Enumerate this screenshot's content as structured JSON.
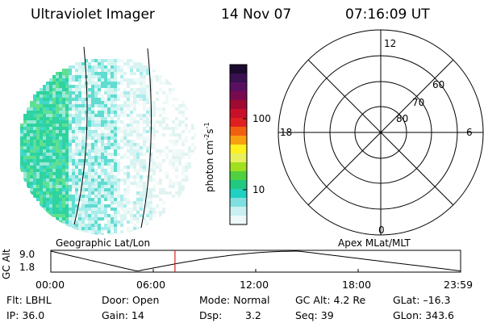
{
  "header": {
    "instrument": "Ultraviolet Imager",
    "date": "14 Nov 07",
    "time": "07:16:09 UT"
  },
  "colorbar": {
    "label_main": "photon cm",
    "label_exp1": "-2",
    "label_mid": "s",
    "label_exp2": "-1",
    "ticks": [
      "100",
      "10"
    ],
    "colors": [
      "#1a0a2e",
      "#3a1050",
      "#5a1060",
      "#7a0a50",
      "#a00a30",
      "#c8102a",
      "#e02020",
      "#f06010",
      "#f8a010",
      "#fff020",
      "#e8f060",
      "#a0e020",
      "#50d040",
      "#20c880",
      "#20d0c0",
      "#80e0e0",
      "#c8f0f0",
      "#eef8f8"
    ]
  },
  "geo_label": "Geographic Lat/Lon",
  "apex_label": "Apex MLat/MLT",
  "polar": {
    "mlt_labels": {
      "top": "12",
      "left": "18",
      "right": "6",
      "bottom": "0"
    },
    "lat_labels": [
      "60",
      "70",
      "80"
    ]
  },
  "timeline": {
    "ylabel": "GC Alt",
    "y_ticks": [
      "9.0",
      "1.8"
    ],
    "x_ticks": [
      "00:00",
      "06:00",
      "12:00",
      "18:00",
      "23:59"
    ],
    "marker_hour": 7.27
  },
  "info": {
    "row1": {
      "flt": "Flt: LBHL",
      "door": "Door: Open",
      "mode": "Mode: Normal",
      "gcalt": "GC Alt: 4.2 Re",
      "glat": "GLat: –16.3"
    },
    "row2": {
      "ip": "IP: 36.0",
      "gain": "Gain: 14",
      "dsp_label": "Dsp:",
      "dsp_val": "3.2",
      "seq": "Seq: 39",
      "glon": "GLon: 343.6"
    }
  },
  "colors": {
    "marker": "#d02020",
    "line": "#000000"
  }
}
